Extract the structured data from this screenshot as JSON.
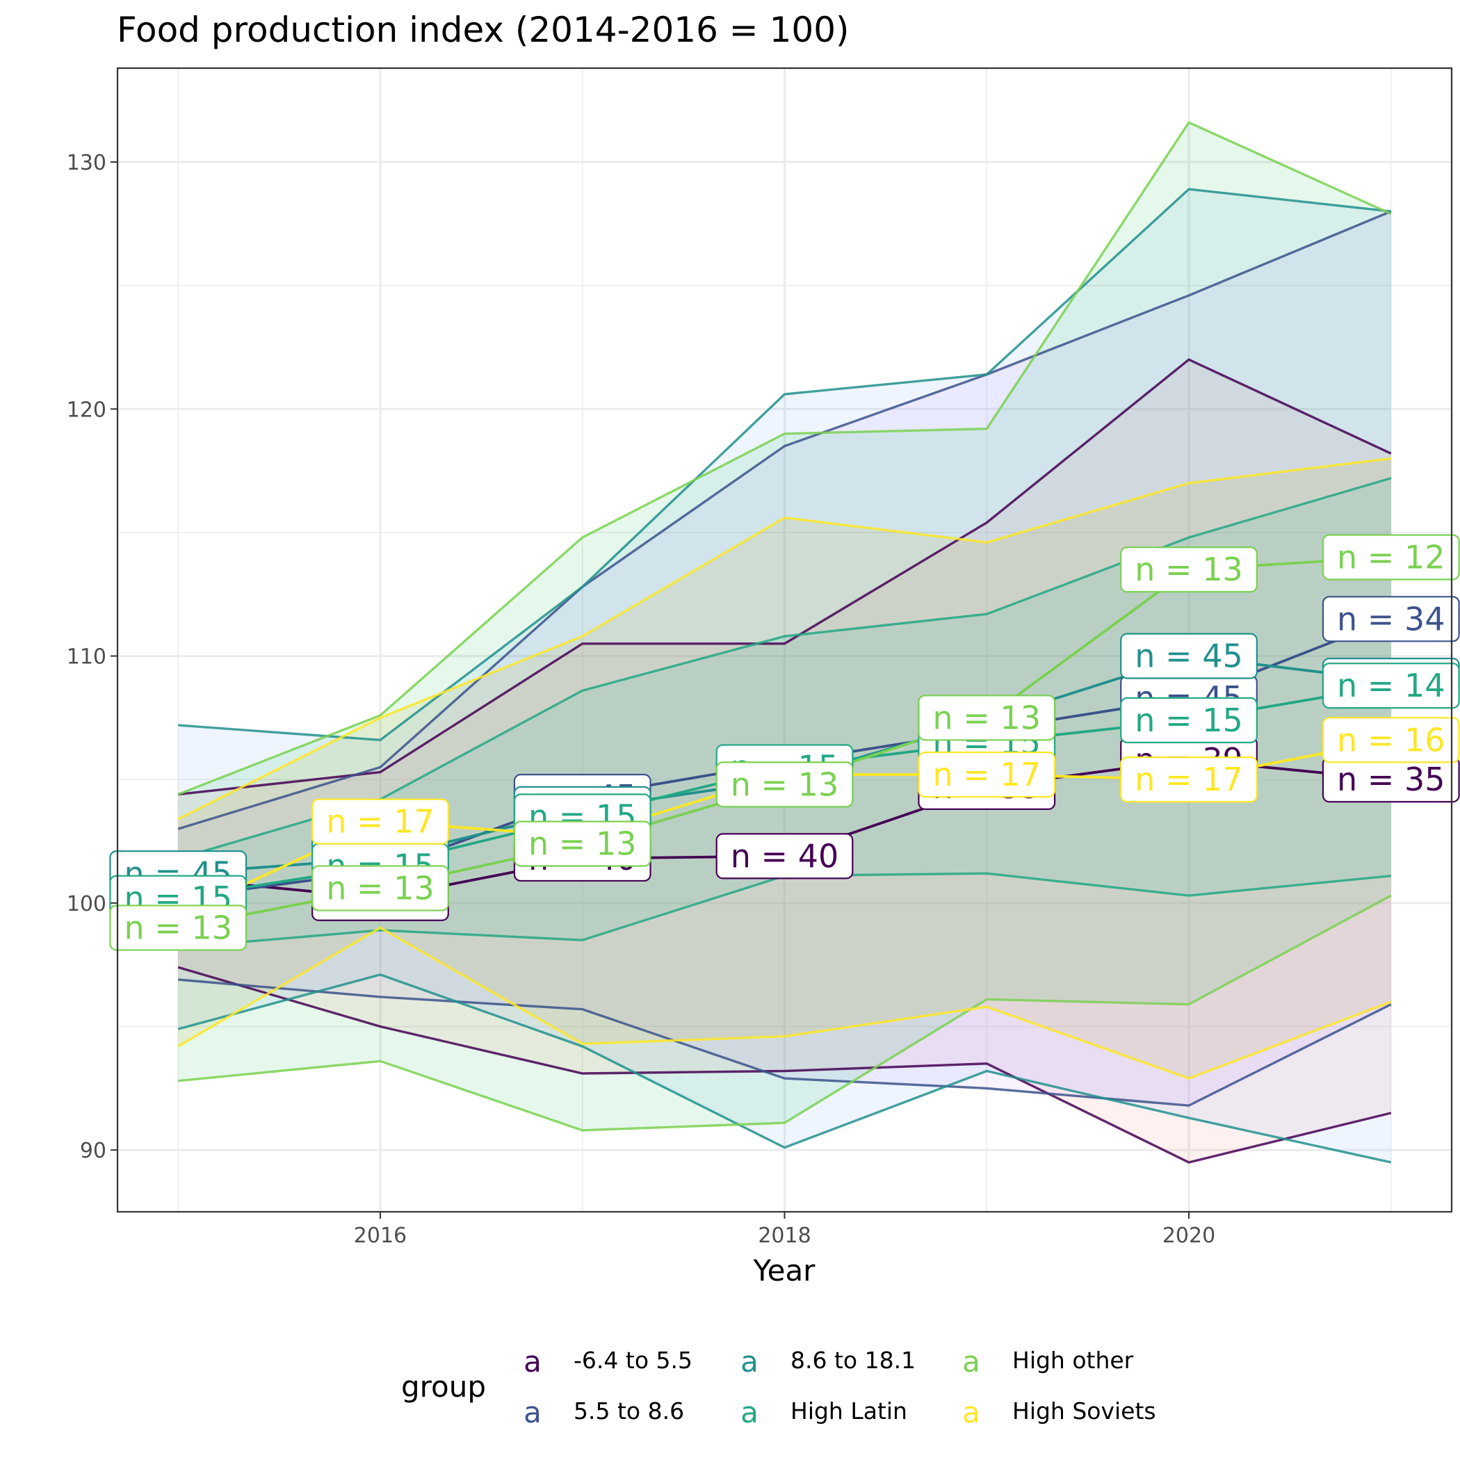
{
  "chart_data": {
    "type": "line",
    "title": "Food production index (2014-2016 = 100)",
    "xlabel": "Year",
    "ylabel": "",
    "x": [
      2015,
      2016,
      2017,
      2018,
      2019,
      2020,
      2021
    ],
    "xlim": [
      2014.7,
      2021.3
    ],
    "ylim": [
      87.5,
      133.8
    ],
    "x_ticks": [
      2016,
      2018,
      2020
    ],
    "y_ticks": [
      90,
      100,
      110,
      120,
      130
    ],
    "grid": true,
    "legend": {
      "title": "group",
      "placement": "bottom",
      "key_glyph": "a",
      "entries": [
        "-6.4 to 5.5",
        "5.5 to 8.6",
        "8.6 to 18.1",
        "High Latin",
        "High other",
        "High Soviets"
      ]
    },
    "series": [
      {
        "name": "-6.4 to 5.5",
        "color": "#440154",
        "band_fill": "#f8766d",
        "median": [
          101.0,
          100.2,
          101.8,
          101.9,
          104.7,
          105.8,
          105.0
        ],
        "upper": [
          104.4,
          105.3,
          110.5,
          110.5,
          115.4,
          122.0,
          118.2
        ],
        "lower": [
          97.4,
          95.0,
          93.1,
          93.2,
          93.5,
          89.5,
          91.5
        ],
        "n": [
          null,
          42,
          40,
          40,
          39,
          39,
          35
        ]
      },
      {
        "name": "5.5 to 8.6",
        "color": "#3b528b",
        "band_fill": "#c77cff",
        "median": [
          100.2,
          101.3,
          104.3,
          105.7,
          107.0,
          108.3,
          111.5
        ],
        "upper": [
          103.0,
          105.5,
          112.8,
          118.5,
          121.4,
          124.6,
          128.0
        ],
        "lower": [
          96.9,
          96.2,
          95.7,
          92.9,
          92.5,
          91.8,
          95.9
        ],
        "n": [
          null,
          null,
          45,
          null,
          null,
          45,
          34
        ]
      },
      {
        "name": "8.6 to 18.1",
        "color": "#21908d",
        "band_fill": "#619cff",
        "median": [
          101.2,
          101.8,
          103.8,
          105.0,
          107.4,
          110.0,
          109.0
        ],
        "upper": [
          107.2,
          106.6,
          112.8,
          120.6,
          121.4,
          128.9,
          128.0
        ],
        "lower": [
          94.9,
          97.1,
          94.2,
          90.1,
          93.2,
          91.3,
          89.5
        ],
        "n": [
          45,
          15,
          15,
          15,
          15,
          45,
          14
        ]
      },
      {
        "name": "High Latin",
        "color": "#22a884",
        "band_fill": "#00bfc4",
        "median": [
          100.2,
          101.5,
          103.5,
          105.5,
          106.5,
          107.4,
          108.8
        ],
        "upper": [
          101.8,
          104.2,
          108.6,
          110.8,
          111.7,
          114.8,
          117.2
        ],
        "lower": [
          98.2,
          98.9,
          98.5,
          101.1,
          101.2,
          100.3,
          101.1
        ],
        "n": [
          15,
          15,
          15,
          15,
          15,
          15,
          14
        ]
      },
      {
        "name": "High other",
        "color": "#7ad151",
        "band_fill": "#00ba38",
        "median": [
          99.0,
          100.6,
          102.4,
          104.8,
          107.5,
          113.5,
          114.0
        ],
        "upper": [
          104.4,
          107.6,
          114.8,
          119.0,
          119.2,
          131.6,
          127.9
        ],
        "lower": [
          92.8,
          93.6,
          90.8,
          91.1,
          96.1,
          95.9,
          100.3
        ],
        "n": [
          13,
          13,
          13,
          13,
          13,
          13,
          12
        ]
      },
      {
        "name": "High Soviets",
        "color": "#fde725",
        "band_fill": "#b79f00",
        "median": [
          99.5,
          103.3,
          102.7,
          105.2,
          105.2,
          105.0,
          106.6
        ],
        "upper": [
          103.4,
          107.5,
          110.8,
          115.6,
          114.6,
          117.0,
          118.0
        ],
        "lower": [
          94.2,
          99.0,
          94.3,
          94.6,
          95.8,
          92.9,
          96.0
        ],
        "n": [
          null,
          17,
          null,
          null,
          17,
          17,
          16
        ]
      }
    ]
  }
}
